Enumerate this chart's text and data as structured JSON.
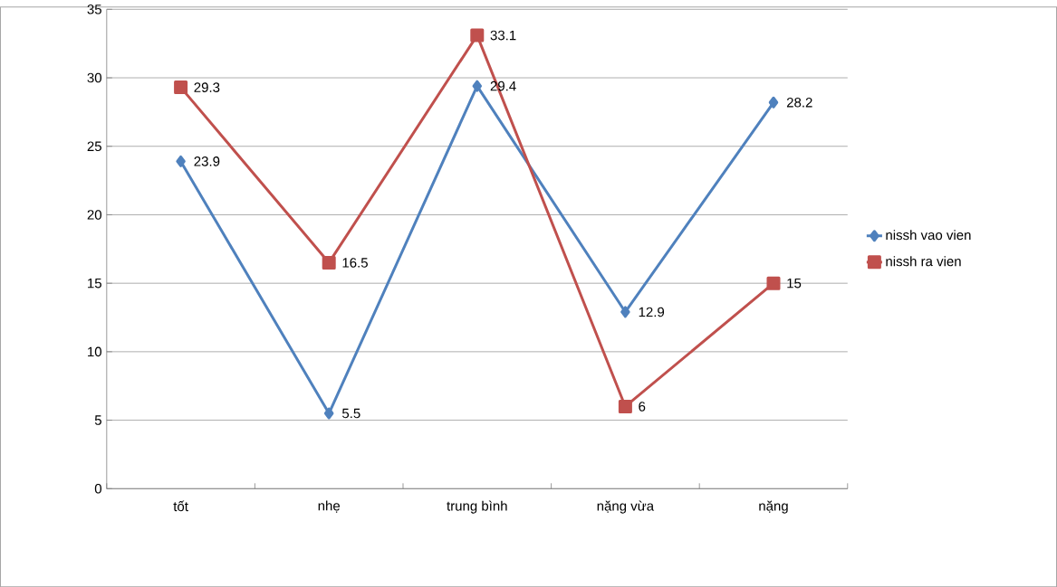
{
  "chart_data": {
    "type": "line",
    "categories": [
      "tốt",
      "nhẹ",
      "trung bình",
      "nặng vừa",
      "nặng"
    ],
    "series": [
      {
        "name": "nissh vao vien",
        "color": "#4f81bd",
        "marker": "diamond",
        "values": [
          23.9,
          5.5,
          29.4,
          12.9,
          28.2
        ]
      },
      {
        "name": "nissh ra vien",
        "color": "#c0504d",
        "marker": "square",
        "values": [
          29.3,
          16.5,
          33.1,
          6,
          15
        ]
      }
    ],
    "ylim": [
      0,
      35
    ],
    "yticks": [
      0,
      5,
      10,
      15,
      20,
      25,
      30,
      35
    ],
    "grid": "y",
    "legend": "right",
    "data_labels": true
  }
}
